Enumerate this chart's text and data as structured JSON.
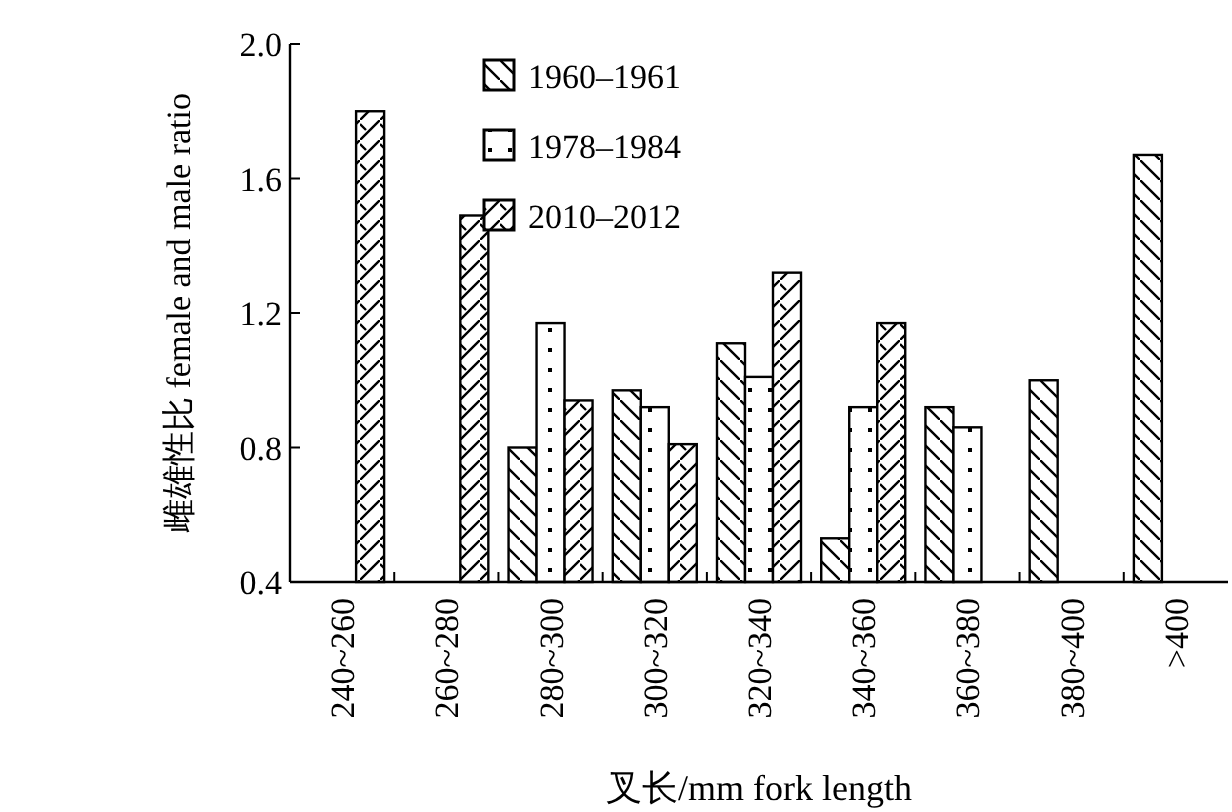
{
  "chart_data": {
    "type": "bar",
    "xlabel": "叉长/mm fork length",
    "ylabel": "雌雄性比 female and male ratio",
    "categories": [
      "240~260",
      "260~280",
      "280~300",
      "300~320",
      "320~340",
      "340~360",
      "360~380",
      "380~400",
      ">400"
    ],
    "series": [
      {
        "name": "1960–1961",
        "color": "#000000",
        "values": [
          null,
          null,
          0.8,
          0.97,
          1.11,
          0.53,
          0.92,
          1.0,
          1.67
        ]
      },
      {
        "name": "1978–1984",
        "color": "#000000",
        "values": [
          null,
          null,
          1.17,
          0.92,
          1.01,
          0.92,
          0.86,
          null,
          null
        ]
      },
      {
        "name": "2010–2012",
        "color": "#000000",
        "values": [
          1.8,
          1.49,
          0.94,
          0.81,
          1.32,
          1.17,
          null,
          null,
          null
        ]
      }
    ],
    "ylim": [
      0.4,
      2.0
    ],
    "yticks": [
      {
        "value": 0.4,
        "label": "0.4"
      },
      {
        "value": 0.8,
        "label": "0.8"
      },
      {
        "value": 1.2,
        "label": "1.2"
      },
      {
        "value": 1.6,
        "label": "1.6"
      },
      {
        "value": 2,
        "label": "2.0"
      }
    ],
    "grid": false,
    "legend": "top"
  }
}
